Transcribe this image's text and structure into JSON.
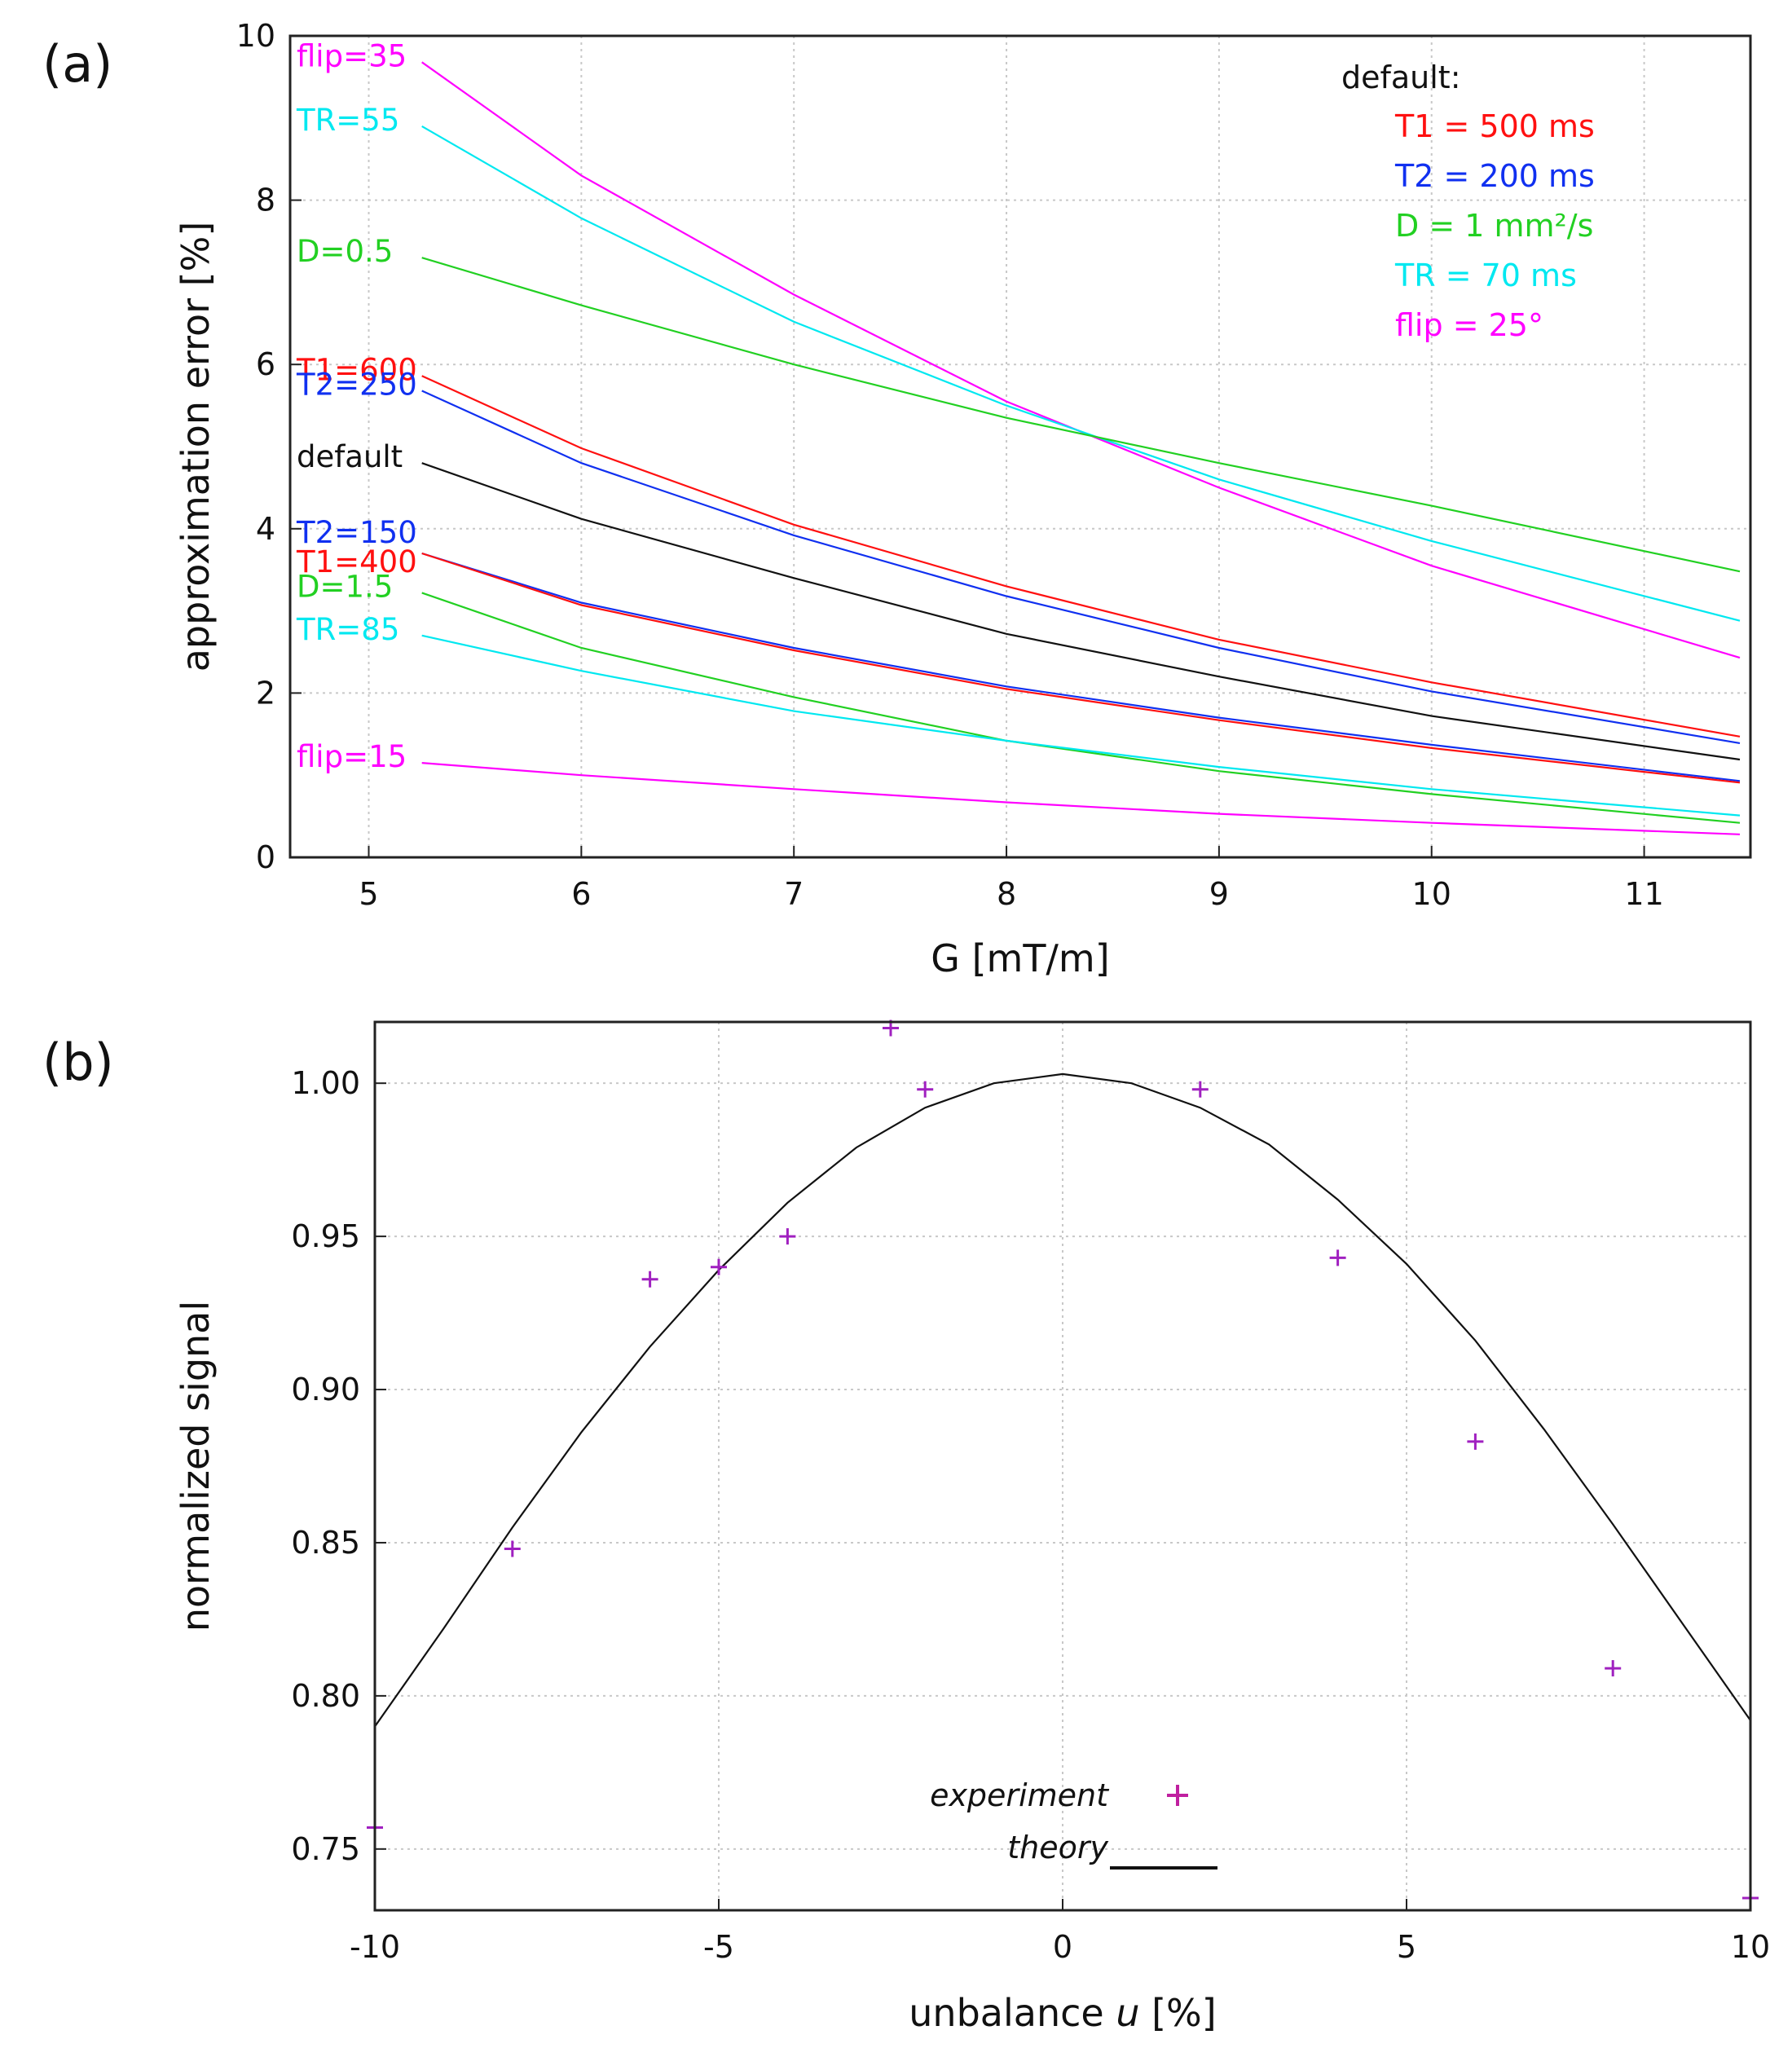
{
  "panel_a_label": "(a)",
  "panel_b_label": "(b)",
  "chart_data": [
    {
      "type": "line",
      "panel": "(a)",
      "xlabel": "G [mT/m]",
      "ylabel": "approximation error [%]",
      "xlim": [
        4.63,
        11.5
      ],
      "ylim": [
        0,
        10
      ],
      "xticks": [
        "5",
        "6",
        "7",
        "8",
        "9",
        "10",
        "11"
      ],
      "yticks": [
        "0",
        "2",
        "4",
        "6",
        "8",
        "10"
      ],
      "grid": true,
      "x": [
        5.25,
        6,
        7,
        8,
        9,
        10,
        11.45
      ],
      "series": [
        {
          "name": "flip=35",
          "color": "#ff00ff",
          "values": [
            9.68,
            8.3,
            6.85,
            5.55,
            4.5,
            3.55,
            2.43
          ]
        },
        {
          "name": "TR=55",
          "color": "#00e8f0",
          "values": [
            8.9,
            7.78,
            6.52,
            5.5,
            4.6,
            3.85,
            2.88
          ]
        },
        {
          "name": "D=0.5",
          "color": "#22d022",
          "values": [
            7.3,
            6.72,
            6.0,
            5.35,
            4.8,
            4.28,
            3.48
          ]
        },
        {
          "name": "T1=600",
          "color": "#ff1010",
          "values": [
            5.86,
            4.98,
            4.05,
            3.3,
            2.65,
            2.13,
            1.47
          ]
        },
        {
          "name": "T2=250",
          "color": "#1030f0",
          "values": [
            5.68,
            4.8,
            3.92,
            3.18,
            2.55,
            2.02,
            1.39
          ]
        },
        {
          "name": "default",
          "color": "#111111",
          "values": [
            4.8,
            4.12,
            3.4,
            2.72,
            2.2,
            1.72,
            1.19
          ]
        },
        {
          "name": "T2=150",
          "color": "#1030f0",
          "values": [
            3.7,
            3.1,
            2.55,
            2.08,
            1.7,
            1.37,
            0.93
          ]
        },
        {
          "name": "T1=400",
          "color": "#ff1010",
          "values": [
            3.7,
            3.07,
            2.52,
            2.05,
            1.67,
            1.33,
            0.91
          ]
        },
        {
          "name": "D=1.5",
          "color": "#22d022",
          "values": [
            3.22,
            2.55,
            1.95,
            1.42,
            1.05,
            0.77,
            0.42
          ]
        },
        {
          "name": "TR=85",
          "color": "#00e8f0",
          "values": [
            2.7,
            2.27,
            1.78,
            1.42,
            1.1,
            0.83,
            0.51
          ]
        },
        {
          "name": "flip=15",
          "color": "#ff00ff",
          "values": [
            1.15,
            1.0,
            0.83,
            0.67,
            0.53,
            0.42,
            0.28
          ]
        }
      ],
      "legend_title": "default:",
      "legend_entries": [
        {
          "text": "T1 = 500 ms",
          "color": "#ff1010"
        },
        {
          "text": "T2 = 200 ms",
          "color": "#1030f0"
        },
        {
          "text": "D = 1 mm²/s",
          "color": "#22d022"
        },
        {
          "text": "TR = 70 ms",
          "color": "#00e8f0"
        },
        {
          "text": "flip = 25°",
          "color": "#ff00ff"
        }
      ]
    },
    {
      "type": "scatter",
      "panel": "(b)",
      "xlabel_prefix": "unbalance ",
      "xlabel_var": "u",
      "xlabel_suffix": " [%]",
      "ylabel": "normalized signal",
      "xlim": [
        -10,
        10
      ],
      "ylim": [
        0.73,
        1.02
      ],
      "xticks": [
        "-10",
        "-5",
        "0",
        "5",
        "10"
      ],
      "yticks": [
        "0.75",
        "0.80",
        "0.85",
        "0.90",
        "0.95",
        "1.00"
      ],
      "grid": true,
      "series": [
        {
          "name": "experiment",
          "marker": "+",
          "color": "#a020c0",
          "x": [
            -10,
            -8,
            -6,
            -5,
            -4,
            -2.5,
            -2,
            2,
            4,
            6,
            8,
            10
          ],
          "y": [
            0.757,
            0.848,
            0.936,
            0.94,
            0.95,
            1.018,
            0.998,
            0.998,
            0.943,
            0.883,
            0.809,
            0.734
          ]
        },
        {
          "name": "theory",
          "marker": "line",
          "color": "#111111",
          "x": [
            -10,
            -9,
            -8,
            -7,
            -6,
            -5,
            -4,
            -3,
            -2,
            -1,
            0,
            1,
            2,
            3,
            4,
            5,
            6,
            7,
            8,
            9,
            10
          ],
          "y": [
            0.79,
            0.822,
            0.855,
            0.886,
            0.914,
            0.939,
            0.961,
            0.979,
            0.992,
            1.0,
            1.003,
            1.0,
            0.992,
            0.98,
            0.962,
            0.941,
            0.916,
            0.887,
            0.856,
            0.824,
            0.792
          ]
        }
      ],
      "legend_entries": [
        {
          "text": "experiment",
          "marker": "+"
        },
        {
          "text": "theory",
          "marker": "line"
        }
      ]
    }
  ]
}
